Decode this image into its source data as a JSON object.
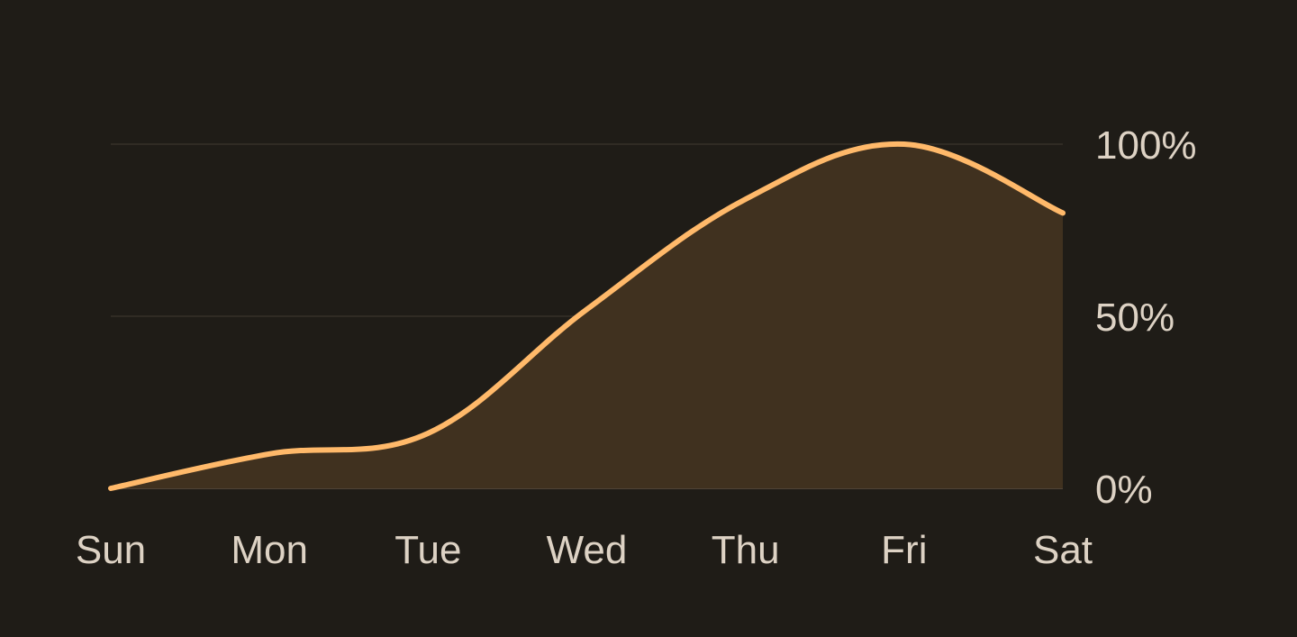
{
  "chart_data": {
    "type": "area",
    "categories": [
      "Sun",
      "Mon",
      "Tue",
      "Wed",
      "Thu",
      "Fri",
      "Sat"
    ],
    "series": [
      {
        "values": [
          0,
          10,
          16,
          52,
          84,
          100,
          80
        ]
      }
    ],
    "yticks": [
      "0%",
      "50%",
      "100%"
    ],
    "ylim": [
      0,
      100
    ],
    "y_axis_position": "right",
    "grid": true,
    "colors": {
      "background": "#1f1c17",
      "line": "#ffb96a",
      "fill": "#40311f",
      "grid": "#3a342c",
      "text": "#ddd2c4"
    }
  }
}
